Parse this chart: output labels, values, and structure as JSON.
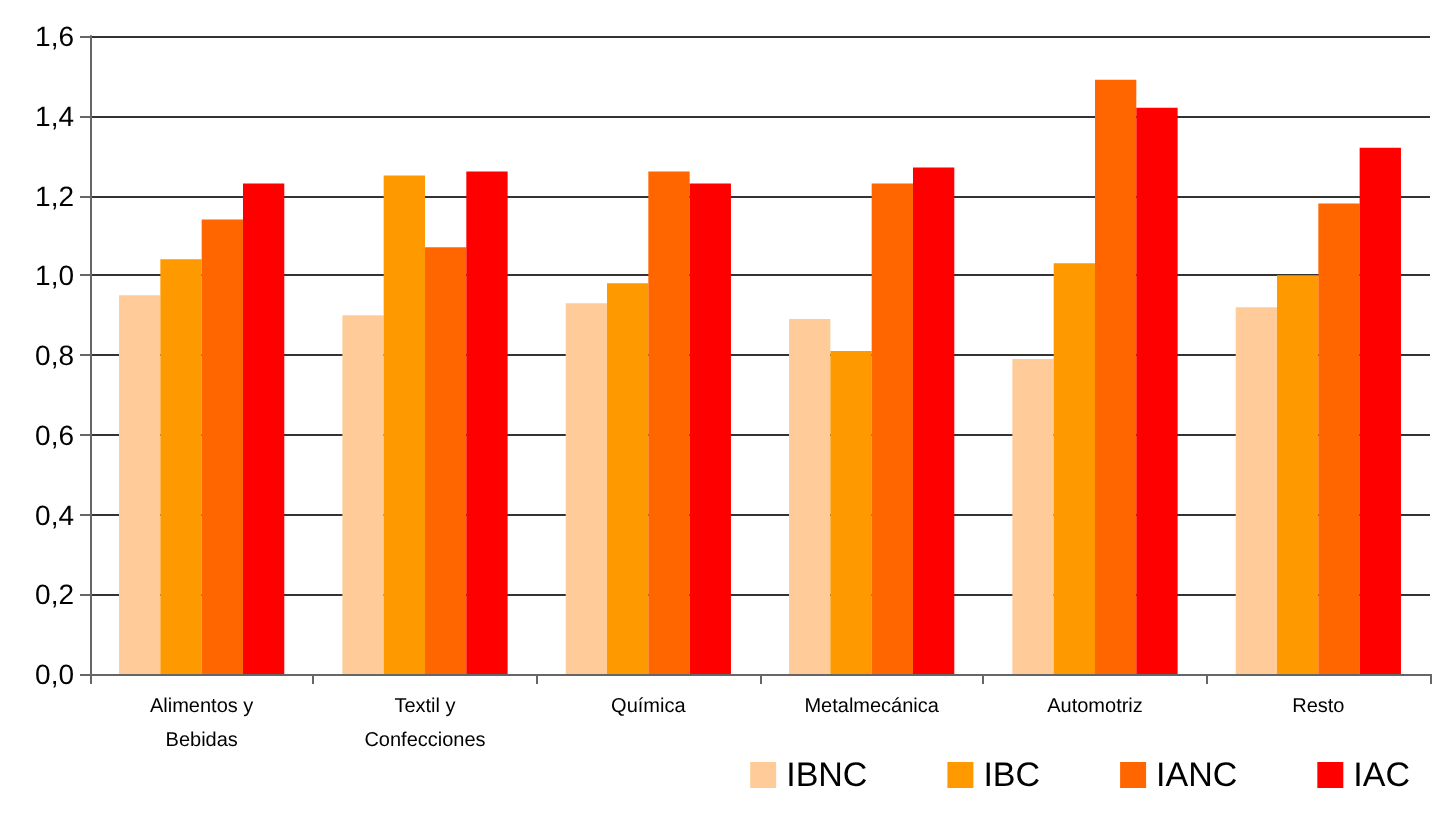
{
  "chart_data": {
    "type": "bar",
    "categories": [
      "Alimentos y\nBebidas",
      "Textil y\nConfecciones",
      "Química",
      "Metalmecánica",
      "Automotriz",
      "Resto"
    ],
    "series": [
      {
        "name": "IBNC",
        "color": "#ffcc99",
        "values": [
          0.95,
          0.9,
          0.93,
          0.89,
          0.79,
          0.92
        ]
      },
      {
        "name": "IBC",
        "color": "#ff9900",
        "values": [
          1.04,
          1.25,
          0.98,
          0.81,
          1.03,
          1.0
        ]
      },
      {
        "name": "IANC",
        "color": "#ff6600",
        "values": [
          1.14,
          1.07,
          1.26,
          1.23,
          1.49,
          1.18
        ]
      },
      {
        "name": "IAC",
        "color": "#ff0000",
        "values": [
          1.23,
          1.26,
          1.23,
          1.27,
          1.42,
          1.32
        ]
      }
    ],
    "ylim": [
      0,
      1.6
    ],
    "yticks": [
      {
        "value": 0,
        "label": "0,0"
      },
      {
        "value": 0.2,
        "label": "0,2"
      },
      {
        "value": 0.4,
        "label": "0,4"
      },
      {
        "value": 0.6,
        "label": "0,6"
      },
      {
        "value": 0.8,
        "label": "0,8"
      },
      {
        "value": 1.0,
        "label": "1,0"
      },
      {
        "value": 1.2,
        "label": "1,2"
      },
      {
        "value": 1.4,
        "label": "1,4"
      },
      {
        "value": 1.6,
        "label": "1,6"
      }
    ],
    "grid": "y",
    "legend": "bottom right"
  }
}
